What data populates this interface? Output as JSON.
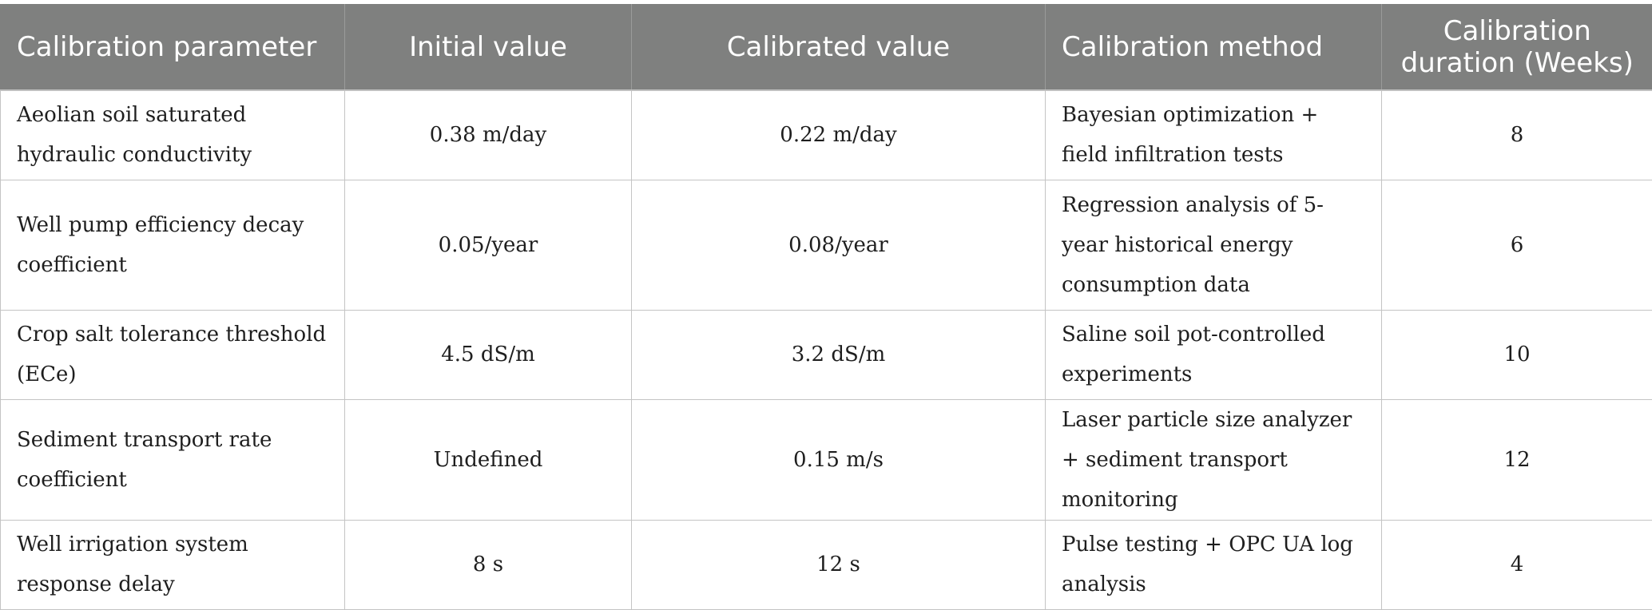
{
  "table": {
    "headers": [
      "Calibration parameter",
      "Initial value",
      "Calibrated value",
      "Calibration method",
      "Calibration duration (Weeks)"
    ],
    "rows": [
      {
        "parameter": "Aeolian soil saturated hydraulic conductivity",
        "initial": "0.38 m/day",
        "calibrated": "0.22 m/day",
        "method": "Bayesian optimization + field infiltration tests",
        "duration": "8"
      },
      {
        "parameter": "Well pump efficiency decay coefficient",
        "initial": "0.05/year",
        "calibrated": "0.08/year",
        "method": "Regression analysis of 5-year historical energy consumption data",
        "duration": "6"
      },
      {
        "parameter": "Crop salt tolerance threshold (ECe)",
        "initial": "4.5 dS/m",
        "calibrated": "3.2 dS/m",
        "method": "Saline soil pot-controlled experiments",
        "duration": "10"
      },
      {
        "parameter": "Sediment transport rate coefficient",
        "initial": "Undefined",
        "calibrated": "0.15 m/s",
        "method": "Laser particle size analyzer + sediment transport monitoring",
        "duration": "12"
      },
      {
        "parameter": "Well irrigation system response delay",
        "initial": "8 s",
        "calibrated": "12 s",
        "method": "Pulse testing + OPC UA log analysis",
        "duration": "4"
      }
    ]
  }
}
